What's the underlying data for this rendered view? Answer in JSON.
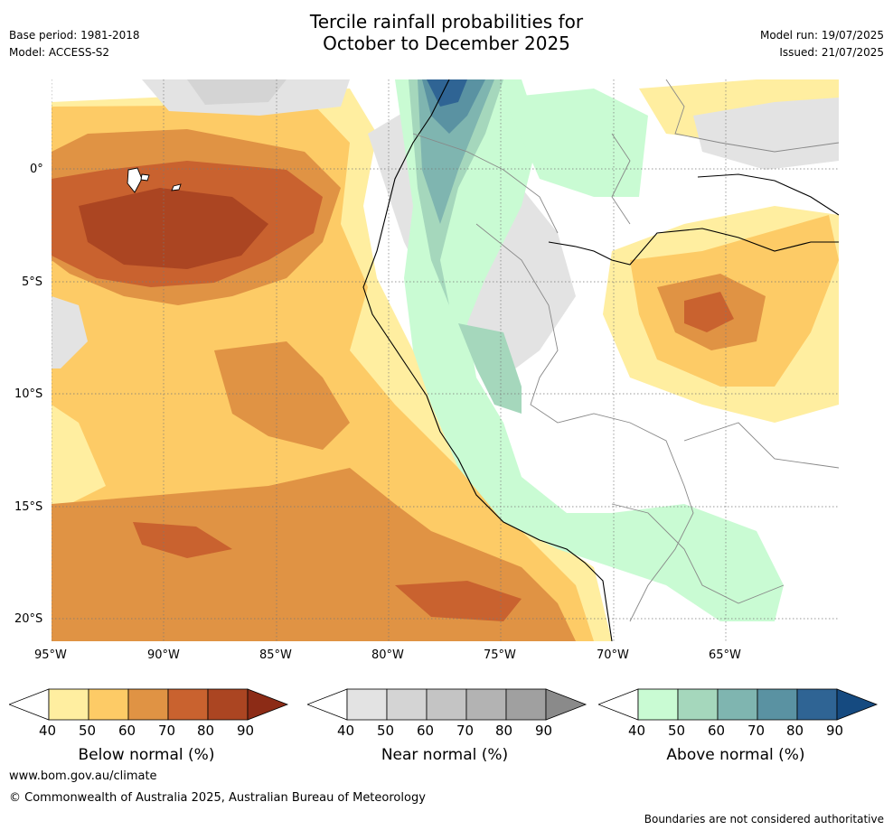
{
  "header": {
    "title_line1": "Tercile rainfall probabilities for",
    "title_line2": "October to December 2025",
    "base_period": "Base period: 1981-2018",
    "model": "Model: ACCESS-S2",
    "model_run": "Model run: 19/07/2025",
    "issued": "Issued: 21/07/2025"
  },
  "map": {
    "lat_labels": [
      "0°",
      "5°S",
      "10°S",
      "15°S",
      "20°S"
    ],
    "lon_labels": [
      "95°W",
      "90°W",
      "85°W",
      "80°W",
      "75°W",
      "70°W",
      "65°W"
    ]
  },
  "colorbars": [
    {
      "name": "below",
      "label": "Below normal (%)",
      "ticks": [
        "40",
        "50",
        "60",
        "70",
        "80",
        "90"
      ],
      "colors": [
        "#ffeea0",
        "#fdcb66",
        "#e09344",
        "#c9622f",
        "#ab4522"
      ],
      "extend": "#8c2b16"
    },
    {
      "name": "near",
      "label": "Near normal (%)",
      "ticks": [
        "40",
        "50",
        "60",
        "70",
        "80",
        "90"
      ],
      "colors": [
        "#e3e3e3",
        "#d4d4d4",
        "#c4c4c4",
        "#b3b3b3",
        "#a0a0a0"
      ],
      "extend": "#8a8a8a"
    },
    {
      "name": "above",
      "label": "Above normal (%)",
      "ticks": [
        "40",
        "50",
        "60",
        "70",
        "80",
        "90"
      ],
      "colors": [
        "#c9fbd3",
        "#a5d7bc",
        "#7fb5b0",
        "#5a92a2",
        "#2f6494"
      ],
      "extend": "#154a80"
    }
  ],
  "footer": {
    "website": "www.bom.gov.au/climate",
    "copyright": "© Commonwealth of Australia 2025, Australian Bureau of Meteorology",
    "disclaimer": "Boundaries are not considered authoritative"
  }
}
